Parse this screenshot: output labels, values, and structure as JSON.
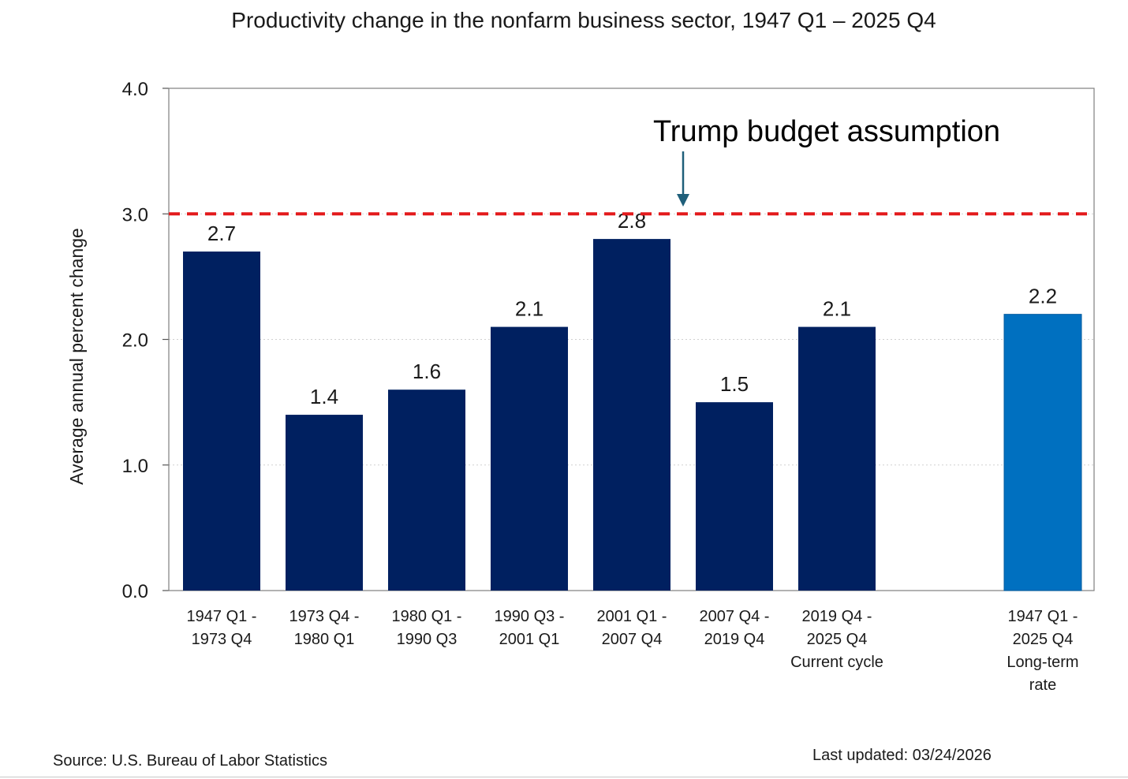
{
  "page": {
    "source": "Source: U.S. Bureau of Labor Statistics",
    "last_updated": "Last updated: 03/24/2026"
  },
  "chart_data": {
    "type": "bar",
    "title": "Productivity change in the nonfarm business sector, 1947 Q1 – 2025 Q4",
    "xlabel": "",
    "ylabel": "Average annual percent change",
    "ylim": [
      0,
      4
    ],
    "yticks": [
      "0.0",
      "1.0",
      "2.0",
      "3.0",
      "4.0"
    ],
    "grid": true,
    "categories": [
      [
        "1947 Q1 -",
        "1973 Q4"
      ],
      [
        "1973 Q4 -",
        "1980 Q1"
      ],
      [
        "1980 Q1 -",
        "1990 Q3"
      ],
      [
        "1990 Q3 -",
        "2001 Q1"
      ],
      [
        "2001 Q1 -",
        "2007 Q4"
      ],
      [
        "2007 Q4 -",
        "2019 Q4"
      ],
      [
        "2019 Q4 -",
        "2025 Q4",
        "Current cycle"
      ],
      [
        "1947 Q1 -",
        "2025 Q4",
        "Long-term",
        "rate"
      ]
    ],
    "values": [
      2.7,
      1.4,
      1.6,
      2.1,
      2.8,
      1.5,
      2.1,
      2.2
    ],
    "value_labels": [
      "2.7",
      "1.4",
      "1.6",
      "2.1",
      "2.8",
      "1.5",
      "2.1",
      "2.2"
    ],
    "bar_colors": [
      "#002060",
      "#002060",
      "#002060",
      "#002060",
      "#002060",
      "#002060",
      "#002060",
      "#0070c0"
    ],
    "reference_line": {
      "value": 3.0,
      "color": "#e31a1c",
      "style": "dashed",
      "label": "Trump budget assumption"
    },
    "arrow_color": "#1f5f7a"
  }
}
